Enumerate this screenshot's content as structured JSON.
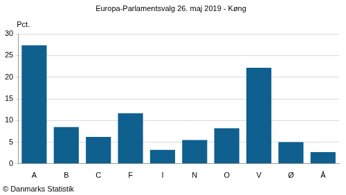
{
  "chart_data": {
    "type": "bar",
    "title": "Europa-Parlamentsvalg 26. maj 2019 - Køng",
    "ylabel": "Pct.",
    "source": "© Danmarks Statistik",
    "categories": [
      "A",
      "B",
      "C",
      "F",
      "I",
      "N",
      "O",
      "V",
      "Ø",
      "Å"
    ],
    "values": [
      27.4,
      8.5,
      6.2,
      11.7,
      3.2,
      5.5,
      8.2,
      22.2,
      5.0,
      2.7
    ],
    "color": "#0f5f8f",
    "ylim": [
      0,
      30
    ],
    "yticks": [
      0,
      5,
      10,
      15,
      20,
      25,
      30
    ],
    "grid": true
  }
}
